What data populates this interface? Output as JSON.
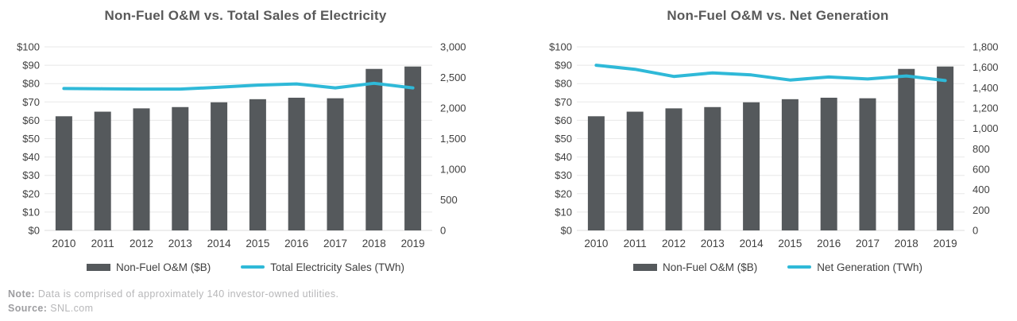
{
  "colors": {
    "bar": "#55595c",
    "line": "#2fb9d8",
    "grid": "#e8e8e8",
    "baseline": "#dedede",
    "tick_text": "#3f3f3f",
    "title_text": "#595959"
  },
  "notes": {
    "note_label": "Note:",
    "note_text": " Data is comprised of approximately 140 investor-owned utilities.",
    "source_label": "Source:",
    "source_text": " SNL.com"
  },
  "chart_data": [
    {
      "type": "bar+line combo",
      "title": "Non-Fuel O&M vs. Total Sales of Electricity",
      "categories": [
        "2010",
        "2011",
        "2012",
        "2013",
        "2014",
        "2015",
        "2016",
        "2017",
        "2018",
        "2019"
      ],
      "series": [
        {
          "name": "Non-Fuel O&M ($B)",
          "type": "bar",
          "axis": "left",
          "values": [
            62.2,
            64.7,
            66.5,
            67.2,
            69.8,
            71.5,
            72.3,
            72.0,
            88.0,
            89.3
          ]
        },
        {
          "name": "Total Electricity Sales (TWh)",
          "type": "line",
          "axis": "right",
          "values": [
            2320,
            2315,
            2310,
            2310,
            2340,
            2375,
            2395,
            2330,
            2405,
            2330
          ]
        }
      ],
      "left_axis": {
        "min": 0,
        "max": 100,
        "step": 10,
        "prefix": "$"
      },
      "right_axis": {
        "min": 0,
        "max": 3000,
        "step": 500
      },
      "grid": true,
      "legend_position": "bottom"
    },
    {
      "type": "bar+line combo",
      "title": "Non-Fuel O&M vs. Net Generation",
      "categories": [
        "2010",
        "2011",
        "2012",
        "2013",
        "2014",
        "2015",
        "2016",
        "2017",
        "2018",
        "2019"
      ],
      "series": [
        {
          "name": "Non-Fuel O&M ($B)",
          "type": "bar",
          "axis": "left",
          "values": [
            62.2,
            64.7,
            66.5,
            67.2,
            69.8,
            71.5,
            72.3,
            72.0,
            88.0,
            89.3
          ]
        },
        {
          "name": "Net Generation (TWh)",
          "type": "line",
          "axis": "right",
          "values": [
            1620,
            1580,
            1510,
            1545,
            1525,
            1475,
            1505,
            1485,
            1515,
            1470
          ]
        }
      ],
      "left_axis": {
        "min": 0,
        "max": 100,
        "step": 10,
        "prefix": "$"
      },
      "right_axis": {
        "min": 0,
        "max": 1800,
        "step": 200
      },
      "grid": true,
      "legend_position": "bottom"
    }
  ]
}
